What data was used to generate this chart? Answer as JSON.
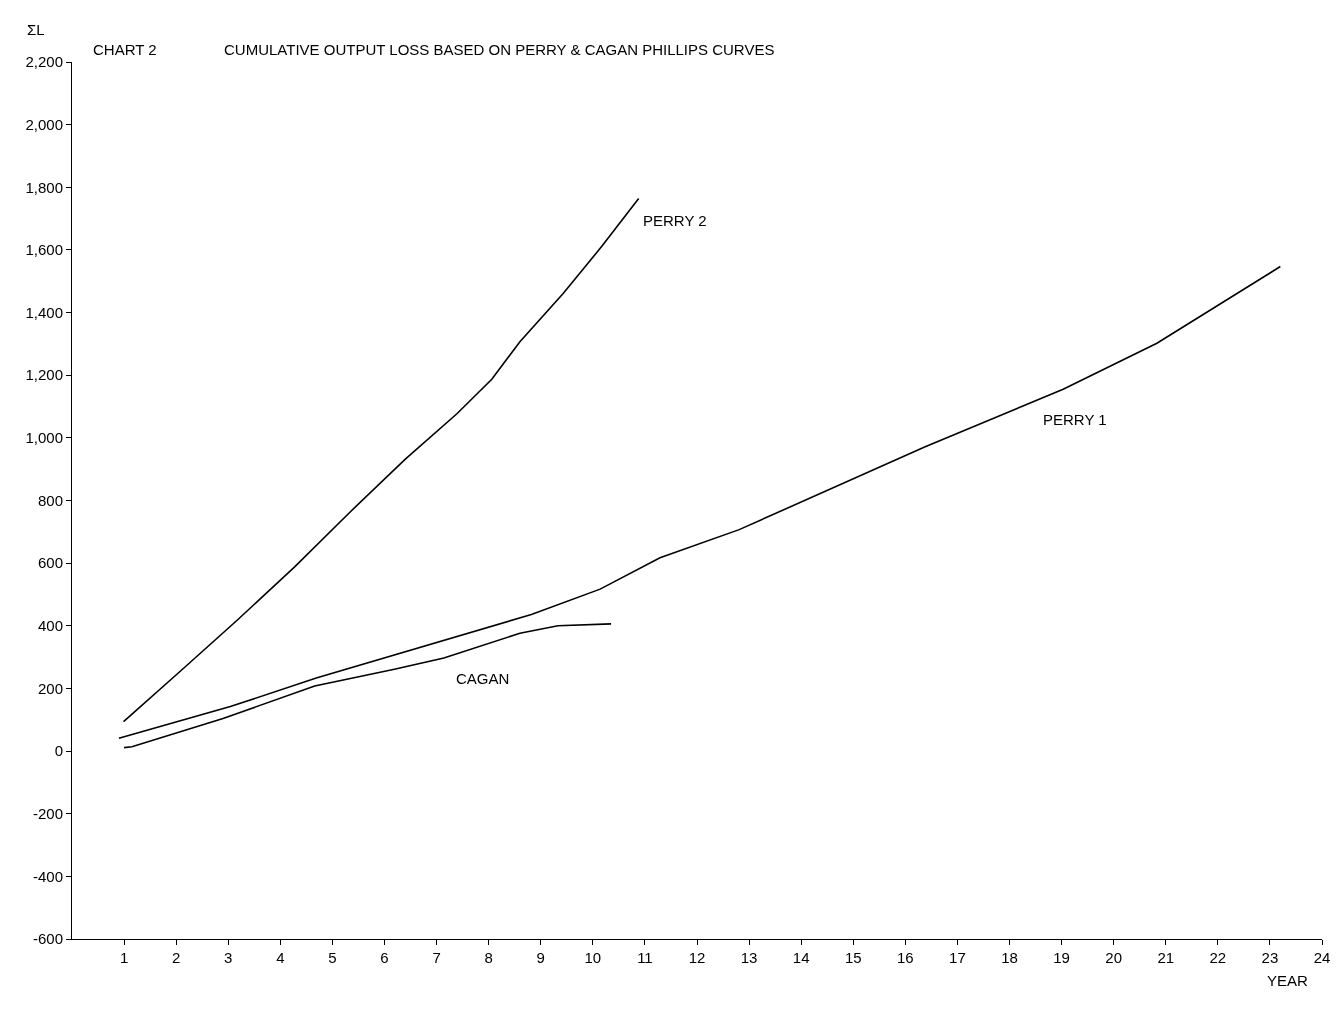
{
  "chart_data": {
    "type": "line",
    "title": "CHART 2",
    "subtitle": "CUMULATIVE OUTPUT LOSS BASED ON PERRY & CAGAN PHILLIPS CURVES",
    "xlabel": "YEAR",
    "ylabel": "ΣL",
    "series": [
      {
        "name": "PERRY 2",
        "color": "#000000",
        "x": [
          0.99,
          2.1,
          3.16,
          4.28,
          5.35,
          6.4,
          7.39,
          8.06,
          8.6,
          9.43,
          10.18,
          10.88
        ],
        "values": [
          94,
          258,
          416,
          589,
          765,
          932,
          1077,
          1187,
          1307,
          1461,
          1613,
          1764
        ]
      },
      {
        "name": "PERRY 1",
        "color": "#000000",
        "x": [
          0.9,
          3.04,
          4.69,
          8.82,
          10.14,
          11.29,
          12.81,
          16.37,
          19.03,
          20.83,
          23.2
        ],
        "values": [
          41,
          142,
          233,
          436,
          517,
          617,
          707,
          971,
          1155,
          1302,
          1547
        ]
      },
      {
        "name": "CAGAN",
        "color": "#000000",
        "x": [
          1.0,
          1.15,
          2.9,
          4.66,
          6.19,
          7.14,
          8.6,
          9.33,
          10.35
        ],
        "values": [
          11,
          14,
          104,
          208,
          261,
          297,
          376,
          400,
          406
        ]
      }
    ],
    "xlim": [
      0,
      24
    ],
    "xticks": [
      1,
      2,
      3,
      4,
      5,
      6,
      7,
      8,
      9,
      10,
      11,
      12,
      13,
      14,
      15,
      16,
      17,
      18,
      19,
      20,
      21,
      22,
      23,
      24
    ],
    "ylim": [
      -600,
      2200
    ],
    "yticks": [
      {
        "value": -600,
        "label": "-600"
      },
      {
        "value": -400,
        "label": "-400"
      },
      {
        "value": -200,
        "label": "-200"
      },
      0,
      200,
      400,
      600,
      800,
      {
        "value": 1000,
        "label": "1,000"
      },
      {
        "value": 1200,
        "label": "1,200"
      },
      {
        "value": 1400,
        "label": "1,400"
      },
      {
        "value": 1600,
        "label": "1,600"
      },
      {
        "value": 1800,
        "label": "1,800"
      },
      {
        "value": 2000,
        "label": "2,000"
      },
      {
        "value": 2200,
        "label": "2,200"
      }
    ],
    "legend": false,
    "marker": "none",
    "line_style": "solid"
  }
}
